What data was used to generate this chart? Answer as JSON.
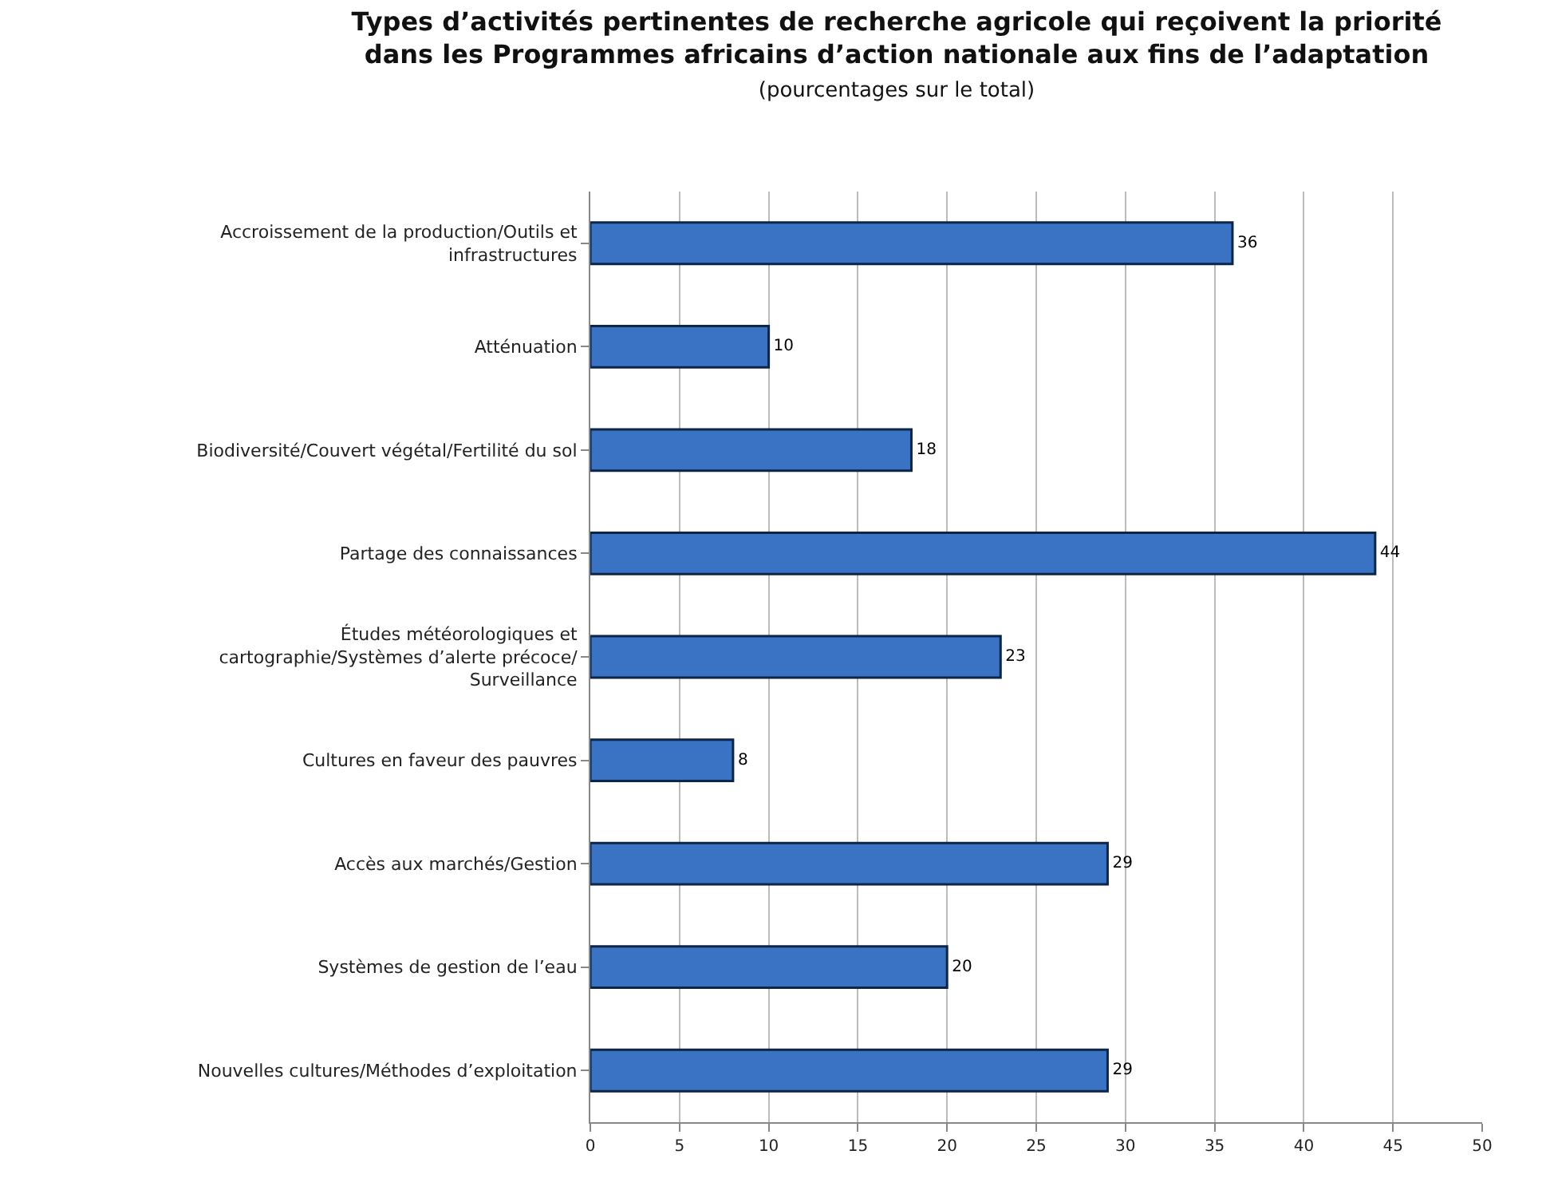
{
  "chart_data": {
    "type": "bar",
    "orientation": "horizontal",
    "title": "Types d’activités pertinentes de recherche agricole qui reçoivent la priorité\ndans les Programmes africains d’action nationale aux fins de l’adaptation",
    "subtitle": "(pourcentages sur le total)",
    "categories": [
      "Accroissement de la production/Outils et\ninfrastructures",
      "Atténuation",
      "Biodiversité/Couvert végétal/Fertilité du sol",
      "Partage des connaissances",
      "Études météorologiques et\ncartographie/Systèmes d’alerte précoce/\nSurveillance",
      "Cultures en faveur des pauvres",
      "Accès aux marchés/Gestion",
      "Systèmes de gestion de l’eau",
      "Nouvelles cultures/Méthodes d’exploitation"
    ],
    "values": [
      36,
      10,
      18,
      44,
      23,
      8,
      29,
      20,
      29
    ],
    "color": "#3a72c4",
    "data_labels": true,
    "grid": "x",
    "xlim": [
      0,
      50
    ],
    "xticks": [
      0,
      5,
      10,
      15,
      20,
      25,
      30,
      35,
      40,
      45,
      50
    ]
  }
}
